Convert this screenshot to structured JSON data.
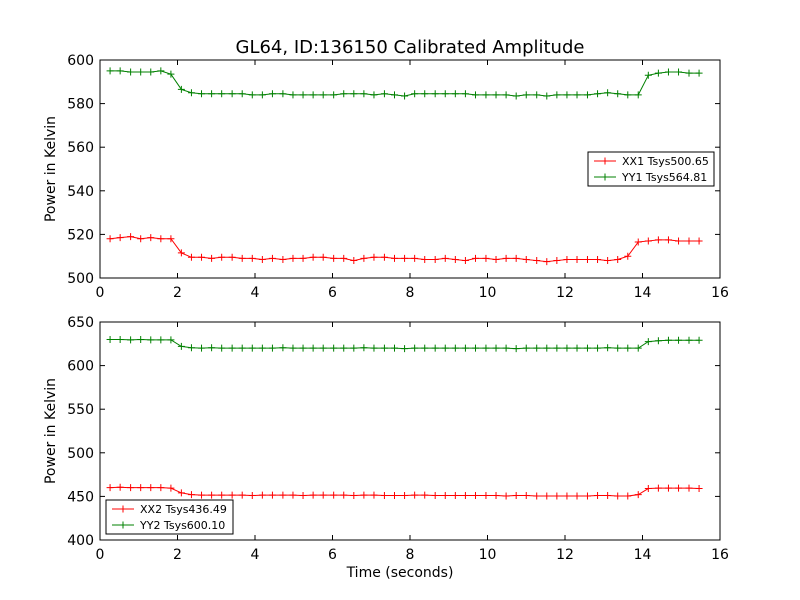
{
  "title": "GL64, ID:136150 Calibrated Amplitude",
  "chart_data": [
    {
      "type": "line",
      "xlabel": "",
      "ylabel": "Power in Kelvin",
      "xlim": [
        0,
        16
      ],
      "ylim": [
        500,
        600
      ],
      "xticks": [
        0,
        2,
        4,
        6,
        8,
        10,
        12,
        14,
        16
      ],
      "yticks": [
        500,
        520,
        540,
        560,
        580,
        600
      ],
      "grid": false,
      "legend_position": "center-right",
      "series": [
        {
          "name": "XX1 Tsys500.65",
          "color": "#ff0000",
          "marker": "plus",
          "x": [
            0.26,
            0.52,
            0.79,
            1.05,
            1.31,
            1.57,
            1.83,
            2.1,
            2.36,
            2.62,
            2.88,
            3.14,
            3.41,
            3.67,
            3.93,
            4.19,
            4.45,
            4.72,
            4.98,
            5.24,
            5.5,
            5.76,
            6.03,
            6.29,
            6.55,
            6.81,
            7.07,
            7.34,
            7.6,
            7.86,
            8.12,
            8.38,
            8.65,
            8.91,
            9.17,
            9.43,
            9.69,
            9.96,
            10.22,
            10.48,
            10.74,
            11.0,
            11.27,
            11.53,
            11.79,
            12.05,
            12.31,
            12.58,
            12.84,
            13.1,
            13.36,
            13.62,
            13.89,
            14.15,
            14.41,
            14.67,
            14.93,
            15.2,
            15.46
          ],
          "values": [
            518,
            518.5,
            519,
            518,
            518.5,
            518,
            518,
            511.5,
            509.5,
            509.5,
            509,
            509.5,
            509.5,
            509,
            509,
            508.5,
            509,
            508.5,
            509,
            509,
            509.5,
            509.5,
            509,
            509,
            508,
            509,
            509.5,
            509.5,
            509,
            509,
            509,
            508.5,
            508.5,
            509,
            508.5,
            508,
            509,
            509,
            508.5,
            509,
            509,
            508.5,
            508,
            507.5,
            508,
            508.5,
            508.5,
            508.5,
            508.5,
            508,
            508.5,
            510,
            516.5,
            517,
            517.5,
            517.5,
            517,
            517,
            517
          ]
        },
        {
          "name": "YY1 Tsys564.81",
          "color": "#008000",
          "marker": "plus",
          "x": [
            0.26,
            0.52,
            0.79,
            1.05,
            1.31,
            1.57,
            1.83,
            2.1,
            2.36,
            2.62,
            2.88,
            3.14,
            3.41,
            3.67,
            3.93,
            4.19,
            4.45,
            4.72,
            4.98,
            5.24,
            5.5,
            5.76,
            6.03,
            6.29,
            6.55,
            6.81,
            7.07,
            7.34,
            7.6,
            7.86,
            8.12,
            8.38,
            8.65,
            8.91,
            9.17,
            9.43,
            9.69,
            9.96,
            10.22,
            10.48,
            10.74,
            11.0,
            11.27,
            11.53,
            11.79,
            12.05,
            12.31,
            12.58,
            12.84,
            13.1,
            13.36,
            13.62,
            13.89,
            14.15,
            14.41,
            14.67,
            14.93,
            15.2,
            15.46
          ],
          "values": [
            595,
            595,
            594.5,
            594.5,
            594.5,
            595,
            593.5,
            586.5,
            585,
            584.5,
            584.5,
            584.5,
            584.5,
            584.5,
            584,
            584,
            584.5,
            584.5,
            584,
            584,
            584,
            584,
            584,
            584.5,
            584.5,
            584.5,
            584,
            584.5,
            584,
            583.5,
            584.5,
            584.5,
            584.5,
            584.5,
            584.5,
            584.5,
            584,
            584,
            584,
            584,
            583.5,
            584,
            584,
            583.5,
            584,
            584,
            584,
            584,
            584.5,
            585,
            584.5,
            584,
            584,
            593,
            594,
            594.5,
            594.5,
            594,
            594
          ]
        }
      ]
    },
    {
      "type": "line",
      "xlabel": "Time (seconds)",
      "ylabel": "Power in Kelvin",
      "xlim": [
        0,
        16
      ],
      "ylim": [
        400,
        650
      ],
      "xticks": [
        0,
        2,
        4,
        6,
        8,
        10,
        12,
        14,
        16
      ],
      "yticks": [
        400,
        450,
        500,
        550,
        600,
        650
      ],
      "grid": false,
      "legend_position": "lower-left",
      "series": [
        {
          "name": "XX2 Tsys436.49",
          "color": "#ff0000",
          "marker": "plus",
          "x": [
            0.26,
            0.52,
            0.79,
            1.05,
            1.31,
            1.57,
            1.83,
            2.1,
            2.36,
            2.62,
            2.88,
            3.14,
            3.41,
            3.67,
            3.93,
            4.19,
            4.45,
            4.72,
            4.98,
            5.24,
            5.5,
            5.76,
            6.03,
            6.29,
            6.55,
            6.81,
            7.07,
            7.34,
            7.6,
            7.86,
            8.12,
            8.38,
            8.65,
            8.91,
            9.17,
            9.43,
            9.69,
            9.96,
            10.22,
            10.48,
            10.74,
            11.0,
            11.27,
            11.53,
            11.79,
            12.05,
            12.31,
            12.58,
            12.84,
            13.1,
            13.36,
            13.62,
            13.89,
            14.15,
            14.41,
            14.67,
            14.93,
            15.2,
            15.46
          ],
          "values": [
            460,
            460.5,
            460,
            460,
            460,
            460,
            459.5,
            454,
            452,
            451.5,
            451.5,
            451.5,
            451.5,
            451.5,
            451,
            451.5,
            451.5,
            451.5,
            451.5,
            451,
            451.5,
            451.5,
            451.5,
            451.5,
            451,
            451.5,
            451.5,
            451,
            451,
            451,
            451.5,
            451.5,
            451,
            451,
            451,
            451,
            451,
            451,
            451,
            450.5,
            451,
            451,
            450.5,
            450.5,
            450.5,
            450.5,
            450.5,
            450.5,
            451,
            451,
            450.5,
            450.5,
            452,
            459,
            459.5,
            459.5,
            459.5,
            459.5,
            459
          ]
        },
        {
          "name": "YY2 Tsys600.10",
          "color": "#008000",
          "marker": "plus",
          "x": [
            0.26,
            0.52,
            0.79,
            1.05,
            1.31,
            1.57,
            1.83,
            2.1,
            2.36,
            2.62,
            2.88,
            3.14,
            3.41,
            3.67,
            3.93,
            4.19,
            4.45,
            4.72,
            4.98,
            5.24,
            5.5,
            5.76,
            6.03,
            6.29,
            6.55,
            6.81,
            7.07,
            7.34,
            7.6,
            7.86,
            8.12,
            8.38,
            8.65,
            8.91,
            9.17,
            9.43,
            9.69,
            9.96,
            10.22,
            10.48,
            10.74,
            11.0,
            11.27,
            11.53,
            11.79,
            12.05,
            12.31,
            12.58,
            12.84,
            13.1,
            13.36,
            13.62,
            13.89,
            14.15,
            14.41,
            14.67,
            14.93,
            15.2,
            15.46
          ],
          "values": [
            630,
            630,
            629.5,
            630,
            629.5,
            629.5,
            629.5,
            622,
            620.5,
            620,
            620.5,
            620,
            620,
            620,
            620,
            620,
            620,
            620.5,
            620,
            620,
            620,
            620,
            620,
            620,
            620,
            620.5,
            620,
            620,
            620,
            619.5,
            620,
            620,
            620,
            620,
            620,
            620,
            620,
            620,
            620,
            620,
            619.5,
            620,
            620,
            620,
            620,
            620,
            620,
            620,
            620,
            620.5,
            620,
            620,
            620,
            627.5,
            628.5,
            629,
            629,
            629,
            629
          ]
        }
      ]
    }
  ]
}
